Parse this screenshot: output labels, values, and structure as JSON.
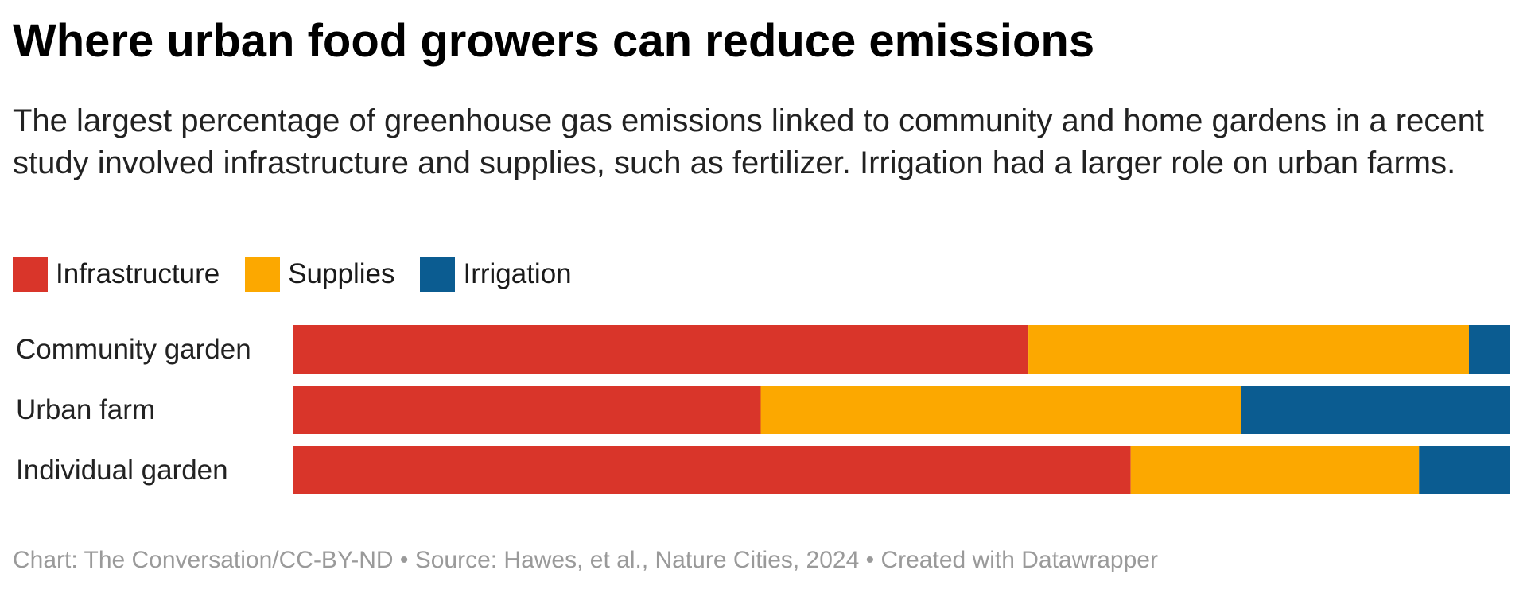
{
  "chart_data": {
    "type": "stacked-bar",
    "title": "Where urban food growers can reduce emissions",
    "subtitle": "The largest percentage of greenhouse gas emissions linked to community and home gardens in a recent study involved infrastructure and supplies, such as fertilizer. Irrigation had a larger role on urban farms.",
    "categories": [
      "Community garden",
      "Urban farm",
      "Individual garden"
    ],
    "series": [
      {
        "name": "Infrastructure",
        "color": "#d9352a",
        "values": [
          60.4,
          38.4,
          68.8
        ]
      },
      {
        "name": "Supplies",
        "color": "#fca800",
        "values": [
          36.2,
          39.5,
          23.7
        ]
      },
      {
        "name": "Irrigation",
        "color": "#0b5c91",
        "values": [
          3.4,
          22.1,
          7.5
        ]
      }
    ],
    "xlim": [
      0,
      100
    ],
    "footer": "Chart: The Conversation/CC-BY-ND • Source: Hawes, et al., Nature Cities, 2024 • Created with Datawrapper"
  }
}
